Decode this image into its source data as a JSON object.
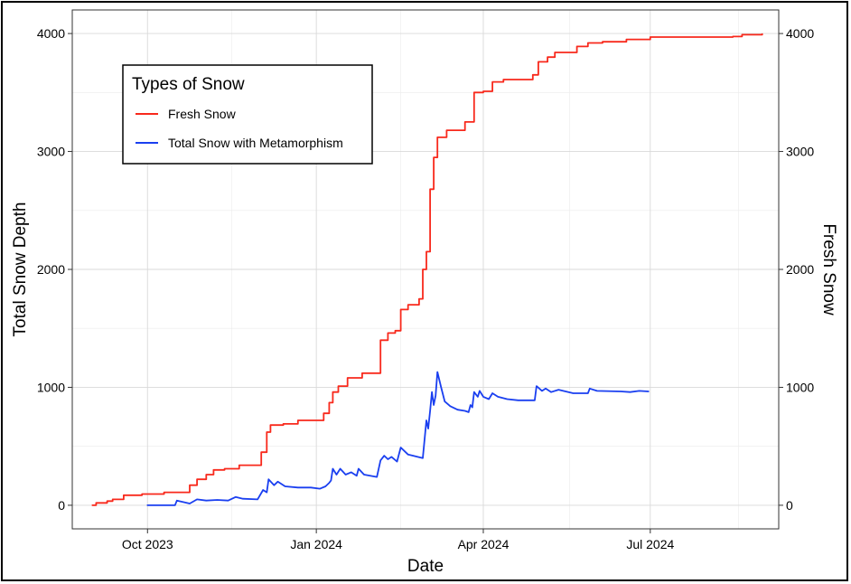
{
  "chart_data": {
    "type": "line",
    "title": "",
    "xlabel": "Date",
    "ylabel": "Total Snow Depth",
    "y2label": "Fresh Snow",
    "xlim": [
      "2023-08-21",
      "2024-09-09"
    ],
    "ylim": [
      -200,
      4200
    ],
    "x_ticks": [
      {
        "date": "2023-10-01",
        "label": "Oct 2023"
      },
      {
        "date": "2024-01-01",
        "label": "Jan 2024"
      },
      {
        "date": "2024-04-01",
        "label": "Apr 2024"
      },
      {
        "date": "2024-07-01",
        "label": "Jul 2024"
      }
    ],
    "y_ticks": [
      0,
      1000,
      2000,
      3000,
      4000
    ],
    "grid": true,
    "legend": {
      "title": "Types of Snow",
      "placement": "top-left"
    },
    "series": [
      {
        "name": "Fresh Snow",
        "color": "#f8291c",
        "step": true,
        "points": [
          [
            "2023-09-01",
            0
          ],
          [
            "2023-09-03",
            20
          ],
          [
            "2023-09-09",
            35
          ],
          [
            "2023-09-12",
            50
          ],
          [
            "2023-09-18",
            85
          ],
          [
            "2023-09-28",
            95
          ],
          [
            "2023-10-10",
            110
          ],
          [
            "2023-10-24",
            170
          ],
          [
            "2023-10-28",
            220
          ],
          [
            "2023-11-02",
            260
          ],
          [
            "2023-11-06",
            300
          ],
          [
            "2023-11-12",
            310
          ],
          [
            "2023-11-20",
            340
          ],
          [
            "2023-12-02",
            450
          ],
          [
            "2023-12-05",
            620
          ],
          [
            "2023-12-07",
            680
          ],
          [
            "2023-12-14",
            690
          ],
          [
            "2023-12-22",
            720
          ],
          [
            "2024-01-05",
            780
          ],
          [
            "2024-01-08",
            870
          ],
          [
            "2024-01-10",
            960
          ],
          [
            "2024-01-13",
            1010
          ],
          [
            "2024-01-18",
            1080
          ],
          [
            "2024-01-26",
            1120
          ],
          [
            "2024-02-05",
            1400
          ],
          [
            "2024-02-09",
            1460
          ],
          [
            "2024-02-13",
            1480
          ],
          [
            "2024-02-16",
            1660
          ],
          [
            "2024-02-20",
            1700
          ],
          [
            "2024-02-26",
            1750
          ],
          [
            "2024-02-28",
            2000
          ],
          [
            "2024-03-01",
            2150
          ],
          [
            "2024-03-03",
            2680
          ],
          [
            "2024-03-05",
            2950
          ],
          [
            "2024-03-07",
            3120
          ],
          [
            "2024-03-12",
            3180
          ],
          [
            "2024-03-22",
            3250
          ],
          [
            "2024-03-27",
            3500
          ],
          [
            "2024-04-01",
            3510
          ],
          [
            "2024-04-06",
            3590
          ],
          [
            "2024-04-12",
            3610
          ],
          [
            "2024-04-20",
            3610
          ],
          [
            "2024-04-28",
            3650
          ],
          [
            "2024-05-01",
            3760
          ],
          [
            "2024-05-06",
            3800
          ],
          [
            "2024-05-10",
            3840
          ],
          [
            "2024-05-22",
            3890
          ],
          [
            "2024-05-28",
            3920
          ],
          [
            "2024-06-05",
            3930
          ],
          [
            "2024-06-18",
            3950
          ],
          [
            "2024-07-01",
            3970
          ],
          [
            "2024-07-15",
            3970
          ],
          [
            "2024-08-01",
            3970
          ],
          [
            "2024-08-15",
            3975
          ],
          [
            "2024-08-20",
            3990
          ],
          [
            "2024-08-31",
            3995
          ]
        ]
      },
      {
        "name": "Total Snow with Metamorphism",
        "color": "#1a3ff0",
        "step": false,
        "points": [
          [
            "2023-10-01",
            0
          ],
          [
            "2023-10-16",
            0
          ],
          [
            "2023-10-17",
            40
          ],
          [
            "2023-10-24",
            15
          ],
          [
            "2023-10-28",
            50
          ],
          [
            "2023-11-02",
            40
          ],
          [
            "2023-11-08",
            45
          ],
          [
            "2023-11-14",
            40
          ],
          [
            "2023-11-18",
            70
          ],
          [
            "2023-11-22",
            55
          ],
          [
            "2023-11-30",
            50
          ],
          [
            "2023-12-03",
            130
          ],
          [
            "2023-12-05",
            110
          ],
          [
            "2023-12-06",
            220
          ],
          [
            "2023-12-09",
            170
          ],
          [
            "2023-12-11",
            200
          ],
          [
            "2023-12-15",
            160
          ],
          [
            "2023-12-22",
            150
          ],
          [
            "2023-12-29",
            150
          ],
          [
            "2024-01-03",
            140
          ],
          [
            "2024-01-06",
            160
          ],
          [
            "2024-01-08",
            190
          ],
          [
            "2024-01-09",
            210
          ],
          [
            "2024-01-10",
            310
          ],
          [
            "2024-01-12",
            260
          ],
          [
            "2024-01-14",
            310
          ],
          [
            "2024-01-17",
            260
          ],
          [
            "2024-01-20",
            280
          ],
          [
            "2024-01-23",
            250
          ],
          [
            "2024-01-24",
            310
          ],
          [
            "2024-01-27",
            260
          ],
          [
            "2024-02-03",
            240
          ],
          [
            "2024-02-05",
            380
          ],
          [
            "2024-02-07",
            420
          ],
          [
            "2024-02-09",
            390
          ],
          [
            "2024-02-11",
            410
          ],
          [
            "2024-02-14",
            370
          ],
          [
            "2024-02-16",
            490
          ],
          [
            "2024-02-20",
            430
          ],
          [
            "2024-02-28",
            400
          ],
          [
            "2024-03-01",
            720
          ],
          [
            "2024-03-02",
            650
          ],
          [
            "2024-03-03",
            800
          ],
          [
            "2024-03-04",
            960
          ],
          [
            "2024-03-05",
            850
          ],
          [
            "2024-03-06",
            930
          ],
          [
            "2024-03-07",
            1130
          ],
          [
            "2024-03-09",
            1000
          ],
          [
            "2024-03-11",
            880
          ],
          [
            "2024-03-14",
            840
          ],
          [
            "2024-03-18",
            810
          ],
          [
            "2024-03-22",
            800
          ],
          [
            "2024-03-24",
            790
          ],
          [
            "2024-03-25",
            850
          ],
          [
            "2024-03-26",
            830
          ],
          [
            "2024-03-27",
            960
          ],
          [
            "2024-03-29",
            920
          ],
          [
            "2024-03-30",
            970
          ],
          [
            "2024-04-01",
            920
          ],
          [
            "2024-04-04",
            900
          ],
          [
            "2024-04-06",
            950
          ],
          [
            "2024-04-09",
            920
          ],
          [
            "2024-04-14",
            900
          ],
          [
            "2024-04-20",
            890
          ],
          [
            "2024-04-29",
            890
          ],
          [
            "2024-04-30",
            1010
          ],
          [
            "2024-05-03",
            970
          ],
          [
            "2024-05-05",
            990
          ],
          [
            "2024-05-08",
            960
          ],
          [
            "2024-05-12",
            980
          ],
          [
            "2024-05-20",
            950
          ],
          [
            "2024-05-28",
            950
          ],
          [
            "2024-05-29",
            990
          ],
          [
            "2024-06-02",
            970
          ],
          [
            "2024-06-15",
            965
          ],
          [
            "2024-06-20",
            960
          ],
          [
            "2024-06-25",
            970
          ],
          [
            "2024-06-30",
            965
          ]
        ]
      }
    ]
  }
}
